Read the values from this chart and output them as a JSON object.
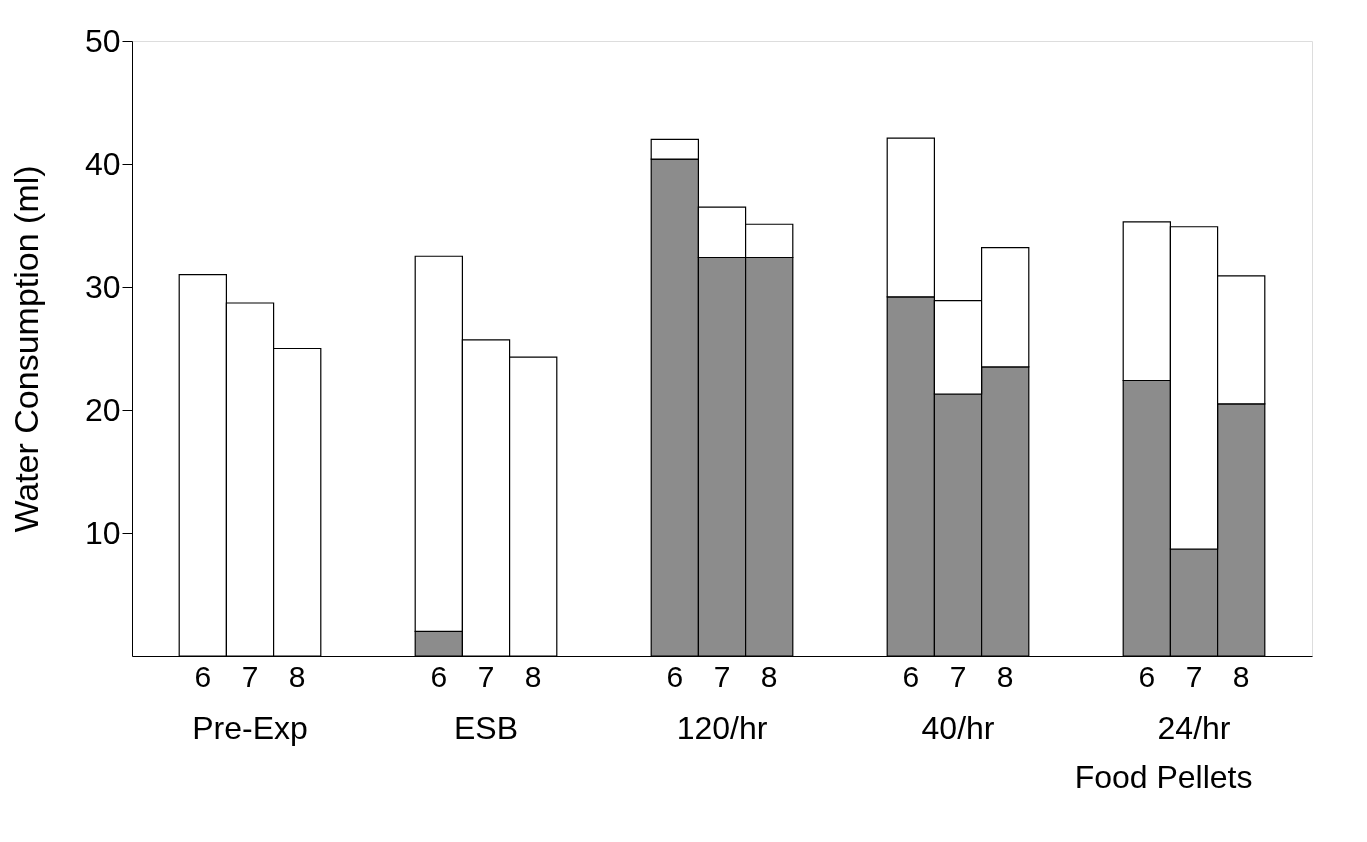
{
  "chart_data": {
    "type": "bar",
    "stacked": true,
    "ylabel": "Water Consumption (ml)",
    "xlabel": "Food Pellets",
    "categories": [
      null,
      "6",
      "7",
      "8",
      null,
      null,
      "6",
      "7",
      "8",
      null,
      null,
      "6",
      "7",
      "8",
      null,
      null,
      "6",
      "7",
      "8",
      null,
      null,
      "6",
      "7",
      "8",
      null
    ],
    "series": [
      {
        "color": "#8c8c8c",
        "values": [
          null,
          null,
          null,
          null,
          null,
          null,
          2.0,
          null,
          null,
          null,
          null,
          40.4,
          32.4,
          32.4,
          null,
          null,
          29.2,
          21.3,
          23.5,
          null,
          null,
          22.4,
          8.7,
          20.5,
          null
        ]
      },
      {
        "color": "#ffffff",
        "values": [
          null,
          31.0,
          28.7,
          25.0,
          null,
          null,
          30.5,
          25.7,
          24.3,
          null,
          null,
          1.6,
          4.1,
          2.7,
          null,
          null,
          12.9,
          7.6,
          9.7,
          null,
          null,
          12.9,
          26.2,
          10.4,
          null
        ]
      }
    ],
    "annotations": [
      "Pre-Exp",
      "ESB",
      "120/hr",
      "40/hr",
      "24/hr"
    ],
    "ylim": [
      0,
      50
    ],
    "yticks": [
      10,
      20,
      30,
      40,
      50
    ],
    "grid": false,
    "legend": false
  }
}
